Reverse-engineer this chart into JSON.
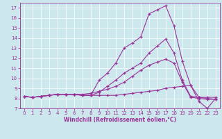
{
  "xlabel": "Windchill (Refroidissement éolien,°C)",
  "x_ticks": [
    0,
    1,
    2,
    3,
    4,
    5,
    6,
    7,
    8,
    9,
    10,
    11,
    12,
    13,
    14,
    15,
    16,
    17,
    18,
    19,
    20,
    21,
    22,
    23
  ],
  "ylim": [
    7,
    17.5
  ],
  "xlim": [
    -0.5,
    23.5
  ],
  "yticks": [
    7,
    8,
    9,
    10,
    11,
    12,
    13,
    14,
    15,
    16,
    17
  ],
  "bg_color": "#cce8ec",
  "line_color": "#993399",
  "line1_y": [
    8.2,
    8.1,
    8.2,
    8.3,
    8.4,
    8.4,
    8.4,
    8.3,
    8.3,
    9.8,
    10.5,
    11.5,
    13.0,
    13.5,
    14.1,
    16.4,
    16.8,
    17.2,
    15.2,
    11.7,
    9.3,
    7.7,
    7.0,
    8.0
  ],
  "line2_y": [
    8.2,
    8.1,
    8.2,
    8.3,
    8.4,
    8.4,
    8.4,
    8.3,
    8.3,
    8.3,
    8.3,
    8.3,
    8.4,
    8.5,
    8.6,
    8.7,
    8.8,
    9.0,
    9.1,
    9.2,
    9.3,
    8.1,
    8.1,
    8.1
  ],
  "line3_y": [
    8.2,
    8.1,
    8.2,
    8.3,
    8.4,
    8.4,
    8.4,
    8.4,
    8.5,
    8.7,
    8.9,
    9.2,
    9.6,
    10.2,
    10.8,
    11.3,
    11.6,
    11.9,
    11.5,
    9.6,
    8.1,
    8.0,
    7.9,
    7.9
  ],
  "line4_y": [
    8.2,
    8.1,
    8.2,
    8.3,
    8.4,
    8.4,
    8.4,
    8.3,
    8.3,
    8.6,
    9.2,
    9.8,
    10.5,
    11.0,
    11.5,
    12.5,
    13.2,
    13.9,
    12.5,
    9.8,
    8.2,
    8.1,
    8.0,
    7.9
  ],
  "tick_fontsize": 5,
  "xlabel_fontsize": 5.5,
  "grid_color": "#ffffff",
  "grid_lw": 0.5,
  "line_lw": 0.8,
  "marker_size": 3
}
